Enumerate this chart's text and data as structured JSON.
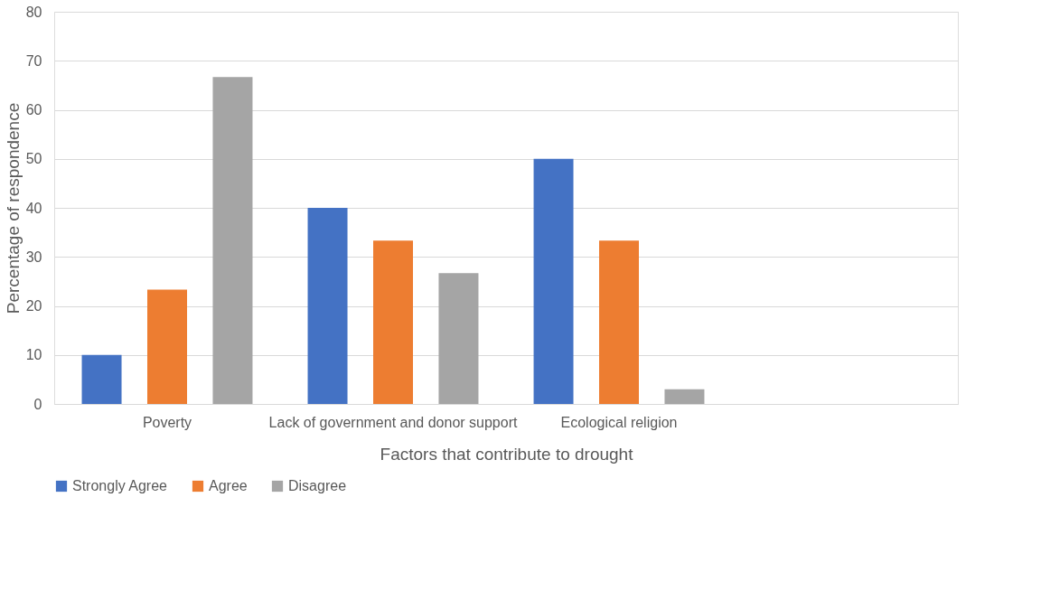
{
  "chart_data": {
    "type": "bar",
    "xlabel": "Factors that contribute to drought",
    "ylabel": "Percentage of respondence",
    "categories": [
      "Poverty",
      "Lack of government and donor support",
      "Ecological religion",
      null
    ],
    "series": [
      {
        "name": "Strongly Agree",
        "color": "#4472c4",
        "values": [
          10,
          40,
          50,
          null
        ]
      },
      {
        "name": "Agree",
        "color": "#ed7d31",
        "values": [
          23.3,
          33.3,
          33.3,
          null
        ]
      },
      {
        "name": "Disagree",
        "color": "#a5a5a5",
        "values": [
          66.7,
          26.7,
          3,
          null
        ]
      }
    ],
    "ylim": [
      0,
      80
    ],
    "yticks": [
      0,
      10,
      20,
      30,
      40,
      50,
      60,
      70,
      80
    ],
    "grid": "y",
    "legend": "bottom"
  }
}
